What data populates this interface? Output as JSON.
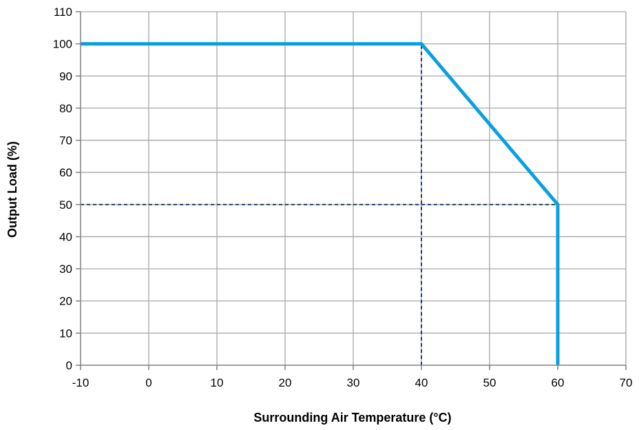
{
  "chart_data": {
    "type": "line",
    "title": "",
    "xlabel": "Surrounding Air Temperature (°C)",
    "ylabel": "Output Load (%)",
    "xlim": [
      -10,
      70
    ],
    "ylim": [
      0,
      110
    ],
    "x_ticks": [
      -10,
      0,
      10,
      20,
      30,
      40,
      50,
      60,
      70
    ],
    "y_ticks": [
      0,
      10,
      20,
      30,
      40,
      50,
      60,
      70,
      80,
      90,
      100,
      110
    ],
    "grid": true,
    "legend": "none",
    "series": [
      {
        "x": [
          -10,
          40,
          60,
          60
        ],
        "y": [
          100,
          100,
          50,
          0
        ],
        "color": "#0AA0E0"
      }
    ],
    "reference_lines": [
      {
        "x": [
          40,
          40
        ],
        "y": [
          0,
          100
        ],
        "color": "#1F3F6E",
        "style": "dashed"
      },
      {
        "x": [
          -10,
          60
        ],
        "y": [
          50,
          50
        ],
        "color": "#1F3F6E",
        "style": "dashed"
      }
    ],
    "colors": {
      "grid": "#A6A6A6",
      "axis": "#808080"
    }
  }
}
